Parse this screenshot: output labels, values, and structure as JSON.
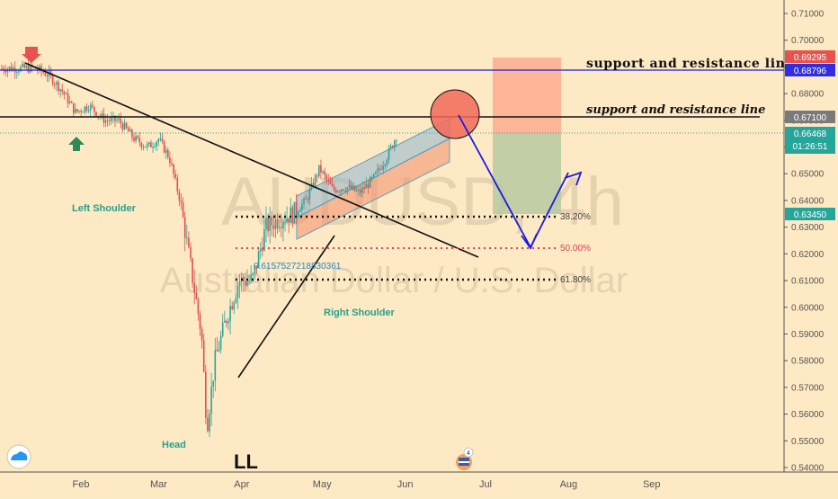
{
  "symbol_watermark": "AUDUSD, 4h",
  "name_watermark": "Australian Dollar / U.S. Dollar",
  "colors": {
    "background": "#fde9c4",
    "candle_up": "#2ca49a",
    "candle_down": "#e0504a",
    "blue_line": "#1a1ae0",
    "resistance_tag": "#e8534d",
    "support_tag": "#2f2fe0",
    "current_tag": "#26a69a"
  },
  "annotations": {
    "line1_label": "support and resistance line",
    "line2_label": "support and resistance line",
    "left_shoulder": "Left Shoulder",
    "head": "Head",
    "right_shoulder": "Right Shoulder",
    "ll": "LL",
    "fib_382": "38.20%",
    "fib_50": "50.00%",
    "fib_618": "61.80%",
    "stray_number": "0.6157527218830361",
    "countdown": "01:26:51"
  },
  "price_tags": {
    "red_top": "0.69295",
    "blue": "0.68796",
    "black": "0.67100",
    "current": "0.66468",
    "green": "0.63450"
  },
  "chart_data": {
    "type": "candlestick",
    "title": "",
    "xlabel": "",
    "ylabel": "",
    "x_ticks": [
      "Feb",
      "Mar",
      "Apr",
      "May",
      "Jun",
      "Jul",
      "Aug",
      "Sep"
    ],
    "y_ticks": [
      "0.71000",
      "0.70000",
      "0.69000",
      "0.68000",
      "0.67000",
      "0.66000",
      "0.65000",
      "0.64000",
      "0.63000",
      "0.62000",
      "0.61000",
      "0.60000",
      "0.59000",
      "0.58000",
      "0.57000",
      "0.56000",
      "0.55000",
      "0.54000"
    ],
    "ylim": [
      0.5375,
      0.7135
    ],
    "close_path": [
      [
        "Jan 10",
        0.6895
      ],
      [
        "Jan 15",
        0.6895
      ],
      [
        "Jan 20",
        0.687
      ],
      [
        "Jan 25",
        0.681
      ],
      [
        "Jan 30",
        0.673
      ],
      [
        "Feb 4",
        0.6755
      ],
      [
        "Feb 10",
        0.67
      ],
      [
        "Feb 15",
        0.67
      ],
      [
        "Feb 21",
        0.663
      ],
      [
        "Feb 26",
        0.66
      ],
      [
        "Mar 1",
        0.663
      ],
      [
        "Mar 5",
        0.656
      ],
      [
        "Mar 9",
        0.64
      ],
      [
        "Mar 13",
        0.615
      ],
      [
        "Mar 17",
        0.59
      ],
      [
        "Mar 19",
        0.555
      ],
      [
        "Mar 22",
        0.58
      ],
      [
        "Mar 26",
        0.595
      ],
      [
        "Mar 31",
        0.61
      ],
      [
        "Apr 5",
        0.61
      ],
      [
        "Apr 10",
        0.63
      ],
      [
        "Apr 15",
        0.633
      ],
      [
        "Apr 20",
        0.635
      ],
      [
        "Apr 25",
        0.64
      ],
      [
        "Apr 30",
        0.652
      ],
      [
        "May 5",
        0.644
      ],
      [
        "May 10",
        0.645
      ],
      [
        "May 15",
        0.643
      ],
      [
        "May 20",
        0.648
      ],
      [
        "May 25",
        0.656
      ],
      [
        "May 29",
        0.6647
      ]
    ],
    "levels": [
      {
        "name": "support and resistance line",
        "value": 0.68796
      },
      {
        "name": "support and resistance line",
        "value": 0.671
      },
      {
        "name": "38.20%",
        "value": 0.6333
      },
      {
        "name": "50.00%",
        "value": 0.6215
      },
      {
        "name": "61.80%",
        "value": 0.61
      }
    ]
  }
}
